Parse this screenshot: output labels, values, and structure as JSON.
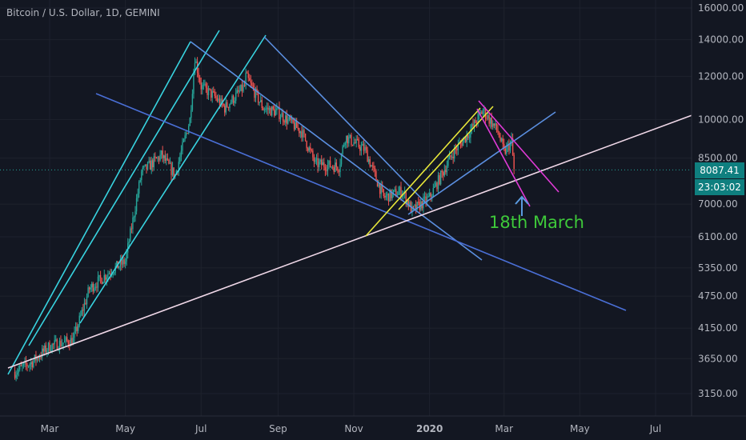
{
  "header": {
    "title": "Bitcoin / U.S. Dollar, 1D, GEMINI"
  },
  "chart_data": {
    "type": "candlestick",
    "symbol": "Bitcoin / U.S. Dollar",
    "interval": "1D",
    "exchange": "GEMINI",
    "scale": "log",
    "y_ticks": [
      3150,
      3650,
      4150,
      4750,
      5350,
      6100,
      7000,
      8500,
      10000,
      12000,
      14000,
      16000
    ],
    "y_tick_labels": [
      "3150.00",
      "3650.00",
      "4150.00",
      "4750.00",
      "5350.00",
      "6100.00",
      "7000.00",
      "8500.00",
      "10000.00",
      "12000.00",
      "14000.00",
      "16000.00"
    ],
    "x_tick_labels": [
      "Mar",
      "May",
      "Jul",
      "Sep",
      "Nov",
      "2020",
      "Mar",
      "May",
      "Jul"
    ],
    "x_ticks": [
      "2019-03-01",
      "2019-05-01",
      "2019-07-01",
      "2019-09-01",
      "2019-11-01",
      "2020-01-01",
      "2020-03-01",
      "2020-05-01",
      "2020-07-01"
    ],
    "price_path": [
      [
        "2019-02-01",
        3450
      ],
      [
        "2019-02-15",
        3600
      ],
      [
        "2019-03-01",
        3850
      ],
      [
        "2019-03-20",
        3950
      ],
      [
        "2019-04-02",
        4900
      ],
      [
        "2019-04-20",
        5300
      ],
      [
        "2019-05-01",
        5500
      ],
      [
        "2019-05-14",
        8000
      ],
      [
        "2019-05-30",
        8600
      ],
      [
        "2019-06-10",
        7900
      ],
      [
        "2019-06-22",
        10000
      ],
      [
        "2019-06-26",
        13000
      ],
      [
        "2019-07-01",
        11500
      ],
      [
        "2019-07-12",
        11000
      ],
      [
        "2019-07-20",
        10500
      ],
      [
        "2019-08-05",
        11500
      ],
      [
        "2019-08-06",
        12000
      ],
      [
        "2019-08-20",
        10500
      ],
      [
        "2019-09-01",
        10300
      ],
      [
        "2019-09-20",
        9500
      ],
      [
        "2019-10-01",
        8300
      ],
      [
        "2019-10-20",
        8200
      ],
      [
        "2019-10-25",
        9300
      ],
      [
        "2019-11-10",
        8800
      ],
      [
        "2019-11-25",
        7200
      ],
      [
        "2019-12-10",
        7400
      ],
      [
        "2019-12-18",
        6800
      ],
      [
        "2020-01-01",
        7200
      ],
      [
        "2020-01-20",
        8700
      ],
      [
        "2020-02-01",
        9400
      ],
      [
        "2020-02-13",
        10400
      ],
      [
        "2020-02-25",
        9500
      ],
      [
        "2020-03-01",
        8700
      ],
      [
        "2020-03-07",
        9100
      ],
      [
        "2020-03-09",
        8087.41
      ]
    ],
    "last_price": "8087.41",
    "countdown": "23:03:02",
    "annotation": "18th March",
    "grid": true
  }
}
